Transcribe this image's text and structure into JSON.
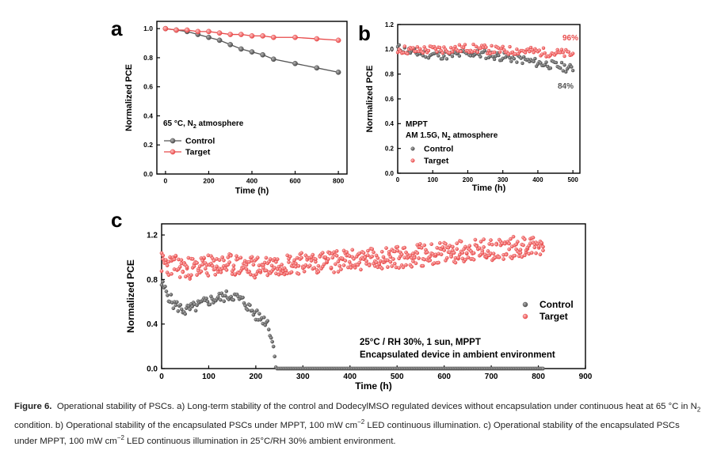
{
  "colors": {
    "control": "#555555",
    "target": "#e84a4a",
    "axis": "#000000"
  },
  "caption": {
    "label": "Figure 6.",
    "text_parts": [
      "Operational stability of PSCs. a) Long-term stability of the control and DodecylMSO regulated devices without encapsulation under continuous heat at 65 °C in N",
      "2",
      " condition. b) Operational stability of the encapsulated PSCs under MPPT, 100 mW cm",
      "−2",
      " LED continuous illumination. c) Operational stability of the encapsulated PSCs under MPPT, 100 mW cm",
      "−2",
      " LED continuous illumination in 25°C/RH 30% ambient environment."
    ]
  },
  "chart_data": [
    {
      "panel": "a",
      "type": "line",
      "xlabel": "Time (h)",
      "ylabel": "Normalized PCE",
      "xlim": [
        -40,
        840
      ],
      "ylim": [
        0,
        1.05
      ],
      "xticks": [
        0,
        200,
        400,
        600,
        800
      ],
      "yticks": [
        0.0,
        0.2,
        0.4,
        0.6,
        0.8,
        1.0
      ],
      "ytick_labels": [
        "0.0",
        "0.2",
        "0.4",
        "0.6",
        "0.8",
        "1.0"
      ],
      "annotation_parts": [
        "65 °C, N",
        "2",
        " atmosphere"
      ],
      "legend_position": "lower-left",
      "series": [
        {
          "name": "Control",
          "x": [
            0,
            50,
            100,
            150,
            200,
            250,
            300,
            350,
            400,
            450,
            500,
            600,
            700,
            800
          ],
          "y": [
            1.0,
            0.99,
            0.98,
            0.96,
            0.94,
            0.92,
            0.89,
            0.86,
            0.84,
            0.82,
            0.79,
            0.76,
            0.73,
            0.7
          ]
        },
        {
          "name": "Target",
          "x": [
            0,
            50,
            100,
            150,
            200,
            250,
            300,
            350,
            400,
            450,
            500,
            600,
            700,
            800
          ],
          "y": [
            1.0,
            0.99,
            0.99,
            0.98,
            0.98,
            0.97,
            0.96,
            0.96,
            0.95,
            0.95,
            0.94,
            0.94,
            0.93,
            0.92
          ]
        }
      ]
    },
    {
      "panel": "b",
      "type": "scatter",
      "xlabel": "Time (h)",
      "ylabel": "Normalized PCE",
      "xlim": [
        0,
        520
      ],
      "ylim": [
        0,
        1.2
      ],
      "xticks": [
        0,
        100,
        200,
        300,
        400,
        500
      ],
      "yticks": [
        0.0,
        0.2,
        0.4,
        0.6,
        0.8,
        1.0,
        1.2
      ],
      "ytick_labels": [
        "0.0",
        "0.2",
        "0.4",
        "0.6",
        "0.8",
        "1.0",
        "1.2"
      ],
      "annotations": [
        "MPPT",
        "96%",
        "84%"
      ],
      "annotation_parts": [
        "AM 1.5G, N",
        "2",
        " atmosphere"
      ],
      "legend_position": "lower-left",
      "series": [
        {
          "name": "Control",
          "x": [
            0,
            50,
            100,
            150,
            200,
            250,
            300,
            350,
            400,
            450,
            500
          ],
          "y": [
            1.01,
            0.97,
            0.96,
            0.95,
            0.97,
            0.96,
            0.94,
            0.92,
            0.89,
            0.87,
            0.84
          ]
        },
        {
          "name": "Target",
          "x": [
            0,
            50,
            100,
            150,
            200,
            250,
            300,
            350,
            400,
            450,
            500
          ],
          "y": [
            1.0,
            0.99,
            1.0,
            1.0,
            1.01,
            1.0,
            0.99,
            0.99,
            0.98,
            0.97,
            0.96
          ]
        }
      ]
    },
    {
      "panel": "c",
      "type": "scatter",
      "xlabel": "Time (h)",
      "ylabel": "Normalized PCE",
      "xlim": [
        0,
        900
      ],
      "ylim": [
        0,
        1.3
      ],
      "xticks": [
        0,
        100,
        200,
        300,
        400,
        500,
        600,
        700,
        800,
        900
      ],
      "yticks": [
        0.0,
        0.4,
        0.8,
        1.2
      ],
      "ytick_labels": [
        "0.0",
        "0.4",
        "0.8",
        "1.2"
      ],
      "annotations": [
        "25°C / RH 30%, 1 sun, MPPT",
        "Encapsulated device in ambient environment"
      ],
      "legend_position": "right",
      "series": [
        {
          "name": "Control",
          "x": [
            0,
            25,
            50,
            75,
            100,
            125,
            150,
            175,
            200,
            225,
            235,
            240,
            245,
            300,
            400,
            500,
            600,
            700,
            810
          ],
          "y": [
            0.76,
            0.58,
            0.52,
            0.56,
            0.61,
            0.64,
            0.66,
            0.6,
            0.48,
            0.42,
            0.25,
            0.12,
            0.0,
            0.0,
            0.0,
            0.0,
            0.0,
            0.0,
            0.0
          ]
        },
        {
          "name": "Target",
          "x": [
            0,
            50,
            100,
            150,
            200,
            250,
            300,
            350,
            400,
            450,
            500,
            550,
            600,
            650,
            700,
            750,
            810
          ],
          "y": [
            0.95,
            0.9,
            0.92,
            0.93,
            0.91,
            0.94,
            0.95,
            0.96,
            0.97,
            0.99,
            1.0,
            1.02,
            1.04,
            1.06,
            1.07,
            1.09,
            1.11
          ]
        }
      ]
    }
  ],
  "panel_labels": [
    "a",
    "b",
    "c"
  ]
}
